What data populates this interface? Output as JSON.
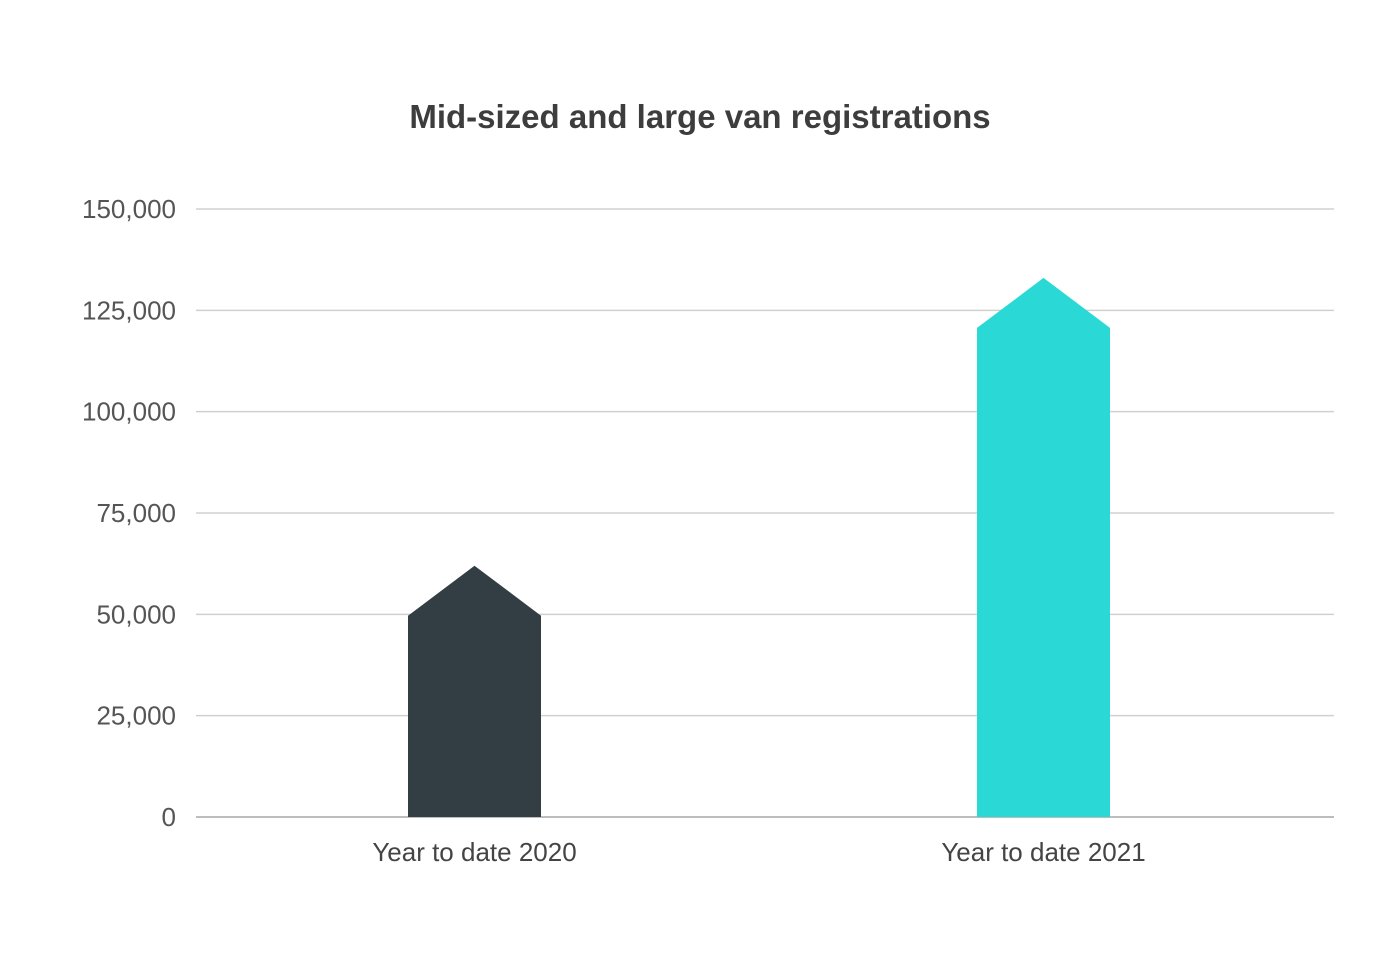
{
  "chart_data": {
    "type": "bar",
    "title": "Mid-sized and large van registrations",
    "xlabel": "",
    "ylabel": "",
    "categories": [
      "Year to date 2020",
      "Year to date 2021"
    ],
    "values": [
      62000,
      133000
    ],
    "ylim": [
      0,
      150000
    ],
    "yticks": [
      0,
      25000,
      50000,
      75000,
      100000,
      125000,
      150000
    ],
    "ytick_labels": [
      "0",
      "25,000",
      "50,000",
      "75,000",
      "100,000",
      "125,000",
      "150,000"
    ],
    "bar_colors": [
      "#323e44",
      "#2ad8d6"
    ],
    "bar_shape": "arrow-up",
    "grid": true,
    "legend": "none"
  }
}
